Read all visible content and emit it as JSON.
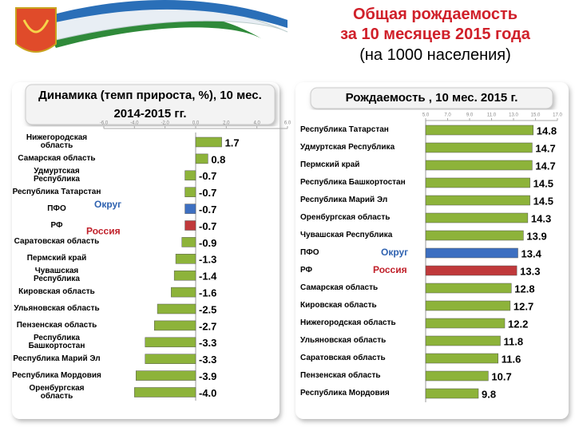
{
  "header": {
    "title": "Общая рождаемость",
    "subtitle": "за 10 месяцев 2015 года",
    "note": "(на 1000 населения)"
  },
  "chart_data": [
    {
      "type": "hbar",
      "title": "Динамика (темп прироста, %), 10 мес. 2014-2015 гг.",
      "categories": [
        "Нижегородская область",
        "Самарская область",
        "Удмуртская Республика",
        "Республика Татарстан",
        "ПФО",
        "РФ",
        "Саратовская область",
        "Пермский край",
        "Чувашская Республика",
        "Кировская область",
        "Ульяновская область",
        "Пензенская область",
        "Республика Башкортостан",
        "Республика Марий Эл",
        "Республика Мордовия",
        "Оренбургская область"
      ],
      "values": [
        1.7,
        0.8,
        -0.7,
        -0.7,
        -0.7,
        -0.7,
        -0.9,
        -1.3,
        -1.4,
        -1.6,
        -2.5,
        -2.7,
        -3.3,
        -3.3,
        -3.9,
        -4.0
      ],
      "value_labels": [
        "1.7",
        "0.8",
        "-0.7",
        "-0.7",
        "-0.7",
        "-0.7",
        "-0.9",
        "-1.3",
        "-1.4",
        "-1.6",
        "-2.5",
        "-2.7",
        "-3.3",
        "-3.3",
        "-3.9",
        "-4.0"
      ],
      "colors": [
        "#8db33a",
        "#8db33a",
        "#8db33a",
        "#8db33a",
        "#3d6fc1",
        "#c0393b",
        "#8db33a",
        "#8db33a",
        "#8db33a",
        "#8db33a",
        "#8db33a",
        "#8db33a",
        "#8db33a",
        "#8db33a",
        "#8db33a",
        "#8db33a"
      ],
      "xlim": [
        -6,
        6
      ],
      "xticks": [
        {
          "value": -6,
          "label": "-6.0"
        },
        {
          "value": -4,
          "label": "-4.0"
        },
        {
          "value": -2,
          "label": "-2.0"
        },
        {
          "value": 0,
          "label": "0.0"
        },
        {
          "value": 2,
          "label": "2.0"
        },
        {
          "value": 4,
          "label": "4.0"
        },
        {
          "value": 6,
          "label": "6.0"
        }
      ],
      "annotations": [
        "Округ",
        "Россия"
      ]
    },
    {
      "type": "hbar",
      "title": "Рождаемость , 10 мес. 2015 г.",
      "categories": [
        "Республика Татарстан",
        "Удмуртская Республика",
        "Пермский край",
        "Республика Башкортостан",
        "Республика Марий Эл",
        "Оренбургская область",
        "Чувашская Республика",
        "ПФО",
        "РФ",
        "Самарская область",
        "Кировская область",
        "Нижегородская область",
        "Ульяновская область",
        "Саратовская область",
        "Пензенская область",
        "Республика Мордовия"
      ],
      "values": [
        14.8,
        14.7,
        14.7,
        14.5,
        14.5,
        14.3,
        13.9,
        13.4,
        13.3,
        12.8,
        12.7,
        12.2,
        11.8,
        11.6,
        10.7,
        9.8
      ],
      "value_labels": [
        "14.8",
        "14.7",
        "14.7",
        "14.5",
        "14.5",
        "14.3",
        "13.9",
        "13.4",
        "13.3",
        "12.8",
        "12.7",
        "12.2",
        "11.8",
        "11.6",
        "10.7",
        "9.8"
      ],
      "colors": [
        "#8db33a",
        "#8db33a",
        "#8db33a",
        "#8db33a",
        "#8db33a",
        "#8db33a",
        "#8db33a",
        "#3d6fc1",
        "#c0393b",
        "#8db33a",
        "#8db33a",
        "#8db33a",
        "#8db33a",
        "#8db33a",
        "#8db33a",
        "#8db33a"
      ],
      "xlim": [
        5,
        17
      ],
      "xticks": [
        {
          "value": 5,
          "label": "5.0"
        },
        {
          "value": 7,
          "label": "7.0"
        },
        {
          "value": 9,
          "label": "9.0"
        },
        {
          "value": 11,
          "label": "11.0"
        },
        {
          "value": 13,
          "label": "13.0"
        },
        {
          "value": 15,
          "label": "15.0"
        },
        {
          "value": 17,
          "label": "17.0"
        }
      ],
      "annotations": [
        "Округ",
        "Россия"
      ]
    }
  ]
}
